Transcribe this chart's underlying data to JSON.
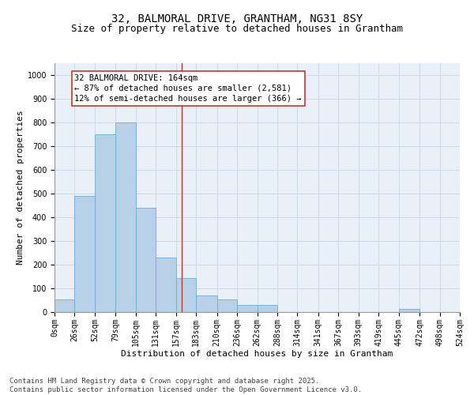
{
  "title1": "32, BALMORAL DRIVE, GRANTHAM, NG31 8SY",
  "title2": "Size of property relative to detached houses in Grantham",
  "xlabel": "Distribution of detached houses by size in Grantham",
  "ylabel": "Number of detached properties",
  "bin_edges": [
    0,
    26,
    52,
    79,
    105,
    131,
    157,
    183,
    210,
    236,
    262,
    288,
    314,
    341,
    367,
    393,
    419,
    445,
    472,
    498,
    524
  ],
  "bar_heights": [
    55,
    490,
    750,
    800,
    440,
    230,
    145,
    70,
    55,
    30,
    30,
    0,
    0,
    0,
    0,
    0,
    0,
    15,
    0,
    0
  ],
  "bar_color": "#b8d0e8",
  "bar_edge_color": "#6baed6",
  "grid_color": "#c8d4e8",
  "background_color": "#eaf0f8",
  "vline_x": 164,
  "vline_color": "#c0392b",
  "annotation_line1": "32 BALMORAL DRIVE: 164sqm",
  "annotation_line2": "← 87% of detached houses are smaller (2,581)",
  "annotation_line3": "12% of semi-detached houses are larger (366) →",
  "annotation_box_color": "#c0392b",
  "annotation_box_fill": "#ffffff",
  "ylim": [
    0,
    1050
  ],
  "yticks": [
    0,
    100,
    200,
    300,
    400,
    500,
    600,
    700,
    800,
    900,
    1000
  ],
  "footer_text": "Contains HM Land Registry data © Crown copyright and database right 2025.\nContains public sector information licensed under the Open Government Licence v3.0.",
  "title1_fontsize": 10,
  "title2_fontsize": 9,
  "xlabel_fontsize": 8,
  "ylabel_fontsize": 8,
  "tick_fontsize": 7,
  "annotation_fontsize": 7.5,
  "footer_fontsize": 6.5
}
